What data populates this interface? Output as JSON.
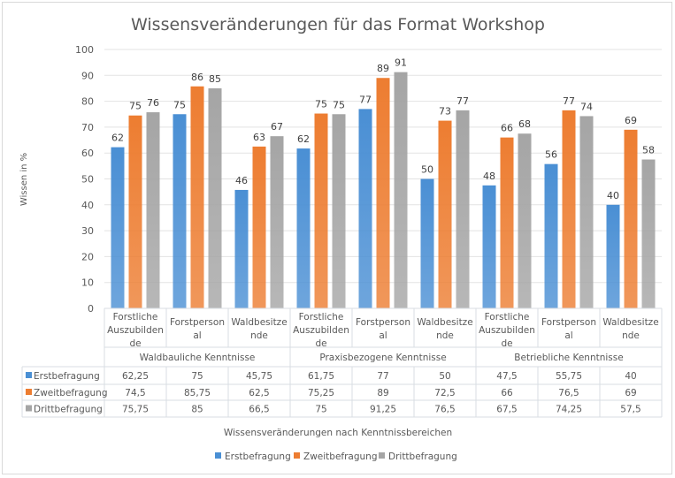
{
  "chart_data": {
    "type": "bar",
    "title": "Wissensveränderungen  für das Format Workshop",
    "ylabel": "Wissen in %",
    "xlabel": "Wissensveränderungen nach Kenntnissbereichen",
    "ylim": [
      0,
      100
    ],
    "yticks": [
      0,
      10,
      20,
      30,
      40,
      50,
      60,
      70,
      80,
      90,
      100
    ],
    "grid": true,
    "legend_position": "bottom",
    "groups": [
      "Waldbauliche Kenntnisse",
      "Praxisbezogene Kenntnisse",
      "Betriebliche Kenntnisse"
    ],
    "categories": [
      "Forstliche Auszubilden de",
      "Forstperson al",
      "Waldbesitze nde",
      "Forstliche Auszubilden de",
      "Forstperson al",
      "Waldbesitze nde",
      "Forstliche Auszubilden de",
      "Forstperson al",
      "Waldbesitze nde"
    ],
    "series": [
      {
        "name": "Erstbefragung",
        "color": "#4a8fd4",
        "values": [
          62.25,
          75,
          45.75,
          61.75,
          77,
          50,
          47.5,
          55.75,
          40
        ],
        "table": [
          "62,25",
          "75",
          "45,75",
          "61,75",
          "77",
          "50",
          "47,5",
          "55,75",
          "40"
        ]
      },
      {
        "name": "Zweitbefragung",
        "color": "#ed7d31",
        "values": [
          74.5,
          85.75,
          62.5,
          75.25,
          89,
          72.5,
          66,
          76.5,
          69
        ],
        "table": [
          "74,5",
          "85,75",
          "62,5",
          "75,25",
          "89",
          "72,5",
          "66",
          "76,5",
          "69"
        ]
      },
      {
        "name": "Drittbefragung",
        "color": "#a5a5a5",
        "values": [
          75.75,
          85,
          66.5,
          75,
          91.25,
          76.5,
          67.5,
          74.25,
          57.5
        ],
        "table": [
          "75,75",
          "85",
          "66,5",
          "75",
          "91,25",
          "76,5",
          "67,5",
          "74,25",
          "57,5"
        ]
      }
    ]
  }
}
